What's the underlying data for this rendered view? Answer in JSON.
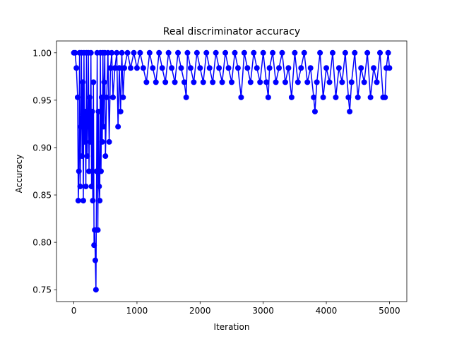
{
  "chart_data": {
    "type": "line",
    "title": "Real discriminator accuracy",
    "xlabel": "Iteration",
    "ylabel": "Accuracy",
    "xlim": [
      -275,
      5275
    ],
    "ylim": [
      0.7375,
      1.0125
    ],
    "xticks": [
      0,
      1000,
      2000,
      3000,
      4000,
      5000
    ],
    "yticks": [
      0.75,
      0.8,
      0.85,
      0.9,
      0.95,
      1.0
    ],
    "ytick_labels": [
      "0.75",
      "0.80",
      "0.85",
      "0.90",
      "0.95",
      "1.00"
    ],
    "grid": false,
    "series": [
      {
        "color": "#0000ff",
        "marker": "circle",
        "x": [
          0,
          20,
          40,
          60,
          70,
          80,
          90,
          100,
          110,
          120,
          130,
          140,
          150,
          160,
          170,
          180,
          190,
          200,
          210,
          220,
          230,
          240,
          250,
          260,
          270,
          280,
          290,
          300,
          310,
          320,
          330,
          340,
          350,
          360,
          370,
          380,
          390,
          400,
          410,
          420,
          430,
          440,
          450,
          460,
          470,
          480,
          490,
          500,
          520,
          540,
          560,
          580,
          600,
          620,
          650,
          680,
          700,
          720,
          740,
          760,
          780,
          800,
          850,
          900,
          950,
          1000,
          1050,
          1100,
          1150,
          1200,
          1250,
          1300,
          1350,
          1400,
          1450,
          1500,
          1550,
          1600,
          1650,
          1700,
          1750,
          1780,
          1800,
          1850,
          1900,
          1950,
          2000,
          2050,
          2100,
          2150,
          2200,
          2250,
          2300,
          2350,
          2400,
          2450,
          2500,
          2550,
          2600,
          2650,
          2700,
          2750,
          2800,
          2850,
          2900,
          2950,
          3000,
          3050,
          3080,
          3100,
          3150,
          3200,
          3250,
          3300,
          3350,
          3400,
          3450,
          3500,
          3550,
          3600,
          3650,
          3700,
          3750,
          3800,
          3820,
          3850,
          3900,
          3950,
          4000,
          4050,
          4100,
          4150,
          4200,
          4250,
          4300,
          4350,
          4370,
          4400,
          4450,
          4500,
          4550,
          4600,
          4650,
          4700,
          4750,
          4800,
          4850,
          4900,
          4930,
          4950,
          4980,
          5000
        ],
        "values": [
          1.0,
          1.0,
          0.984,
          0.953,
          0.844,
          0.875,
          1.0,
          0.859,
          0.922,
          1.0,
          0.891,
          0.969,
          0.844,
          1.0,
          0.906,
          0.938,
          0.859,
          1.0,
          0.891,
          0.922,
          1.0,
          0.875,
          0.953,
          0.906,
          1.0,
          0.859,
          0.938,
          0.844,
          0.969,
          0.797,
          0.813,
          0.781,
          0.75,
          0.875,
          1.0,
          0.813,
          0.938,
          0.859,
          0.844,
          1.0,
          0.875,
          0.953,
          0.906,
          1.0,
          0.922,
          0.969,
          1.0,
          0.891,
          0.953,
          1.0,
          0.906,
          0.984,
          1.0,
          0.953,
          0.984,
          1.0,
          0.922,
          0.984,
          0.938,
          1.0,
          0.953,
          0.984,
          1.0,
          0.984,
          1.0,
          0.984,
          1.0,
          0.984,
          0.969,
          1.0,
          0.984,
          0.969,
          1.0,
          0.984,
          0.969,
          1.0,
          0.984,
          0.969,
          1.0,
          0.984,
          0.969,
          0.953,
          1.0,
          0.984,
          0.969,
          1.0,
          0.984,
          0.969,
          1.0,
          0.984,
          0.969,
          1.0,
          0.984,
          0.969,
          1.0,
          0.984,
          0.969,
          1.0,
          0.984,
          0.953,
          1.0,
          0.984,
          0.969,
          1.0,
          0.984,
          0.969,
          1.0,
          0.969,
          0.953,
          0.984,
          1.0,
          0.969,
          0.984,
          1.0,
          0.969,
          0.984,
          0.953,
          1.0,
          0.969,
          0.984,
          1.0,
          0.969,
          0.984,
          0.953,
          0.938,
          0.969,
          1.0,
          0.953,
          0.984,
          0.969,
          1.0,
          0.953,
          0.984,
          0.969,
          1.0,
          0.953,
          0.938,
          0.969,
          1.0,
          0.953,
          0.984,
          0.969,
          1.0,
          0.953,
          0.984,
          0.969,
          1.0,
          0.953,
          0.953,
          0.984,
          1.0,
          0.984
        ]
      }
    ]
  }
}
